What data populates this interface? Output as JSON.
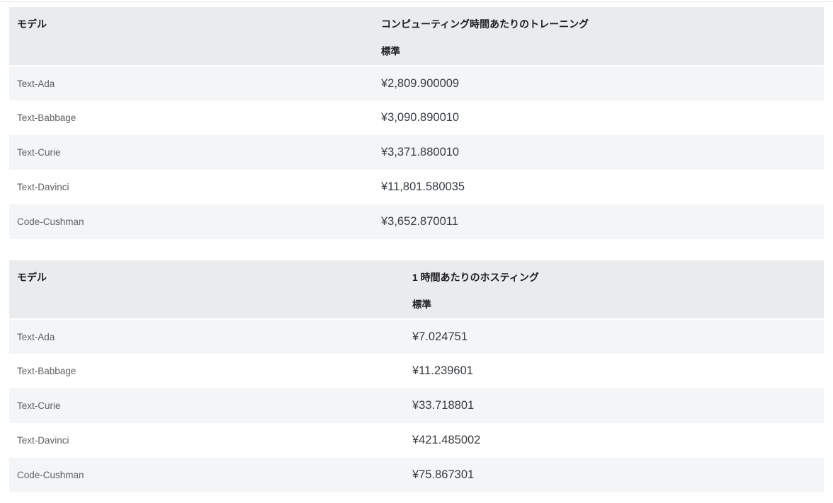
{
  "colors": {
    "header_bg": "#e9ebed",
    "row_alt_bg": "#f4f5f7",
    "row_bg": "#ffffff",
    "header_text": "#1d1d1f",
    "model_text": "#5e6062",
    "price_text": "#373c41"
  },
  "tables": [
    {
      "id": "training",
      "model_header": "モデル",
      "price_header": "コンピューティング時間あたりのトレーニング",
      "price_subheader": "標準",
      "rows": [
        {
          "model": "Text-Ada",
          "price": "¥2,809.900009"
        },
        {
          "model": "Text-Babbage",
          "price": "¥3,090.890010"
        },
        {
          "model": "Text-Curie",
          "price": "¥3,371.880010"
        },
        {
          "model": "Text-Davinci",
          "price": "¥11,801.580035"
        },
        {
          "model": "Code-Cushman",
          "price": "¥3,652.870011"
        }
      ]
    },
    {
      "id": "hosting",
      "model_header": "モデル",
      "price_header": "1 時間あたりのホスティング",
      "price_subheader": "標準",
      "rows": [
        {
          "model": "Text-Ada",
          "price": "¥7.024751"
        },
        {
          "model": "Text-Babbage",
          "price": "¥11.239601"
        },
        {
          "model": "Text-Curie",
          "price": "¥33.718801"
        },
        {
          "model": "Text-Davinci",
          "price": "¥421.485002"
        },
        {
          "model": "Code-Cushman",
          "price": "¥75.867301"
        }
      ]
    }
  ]
}
